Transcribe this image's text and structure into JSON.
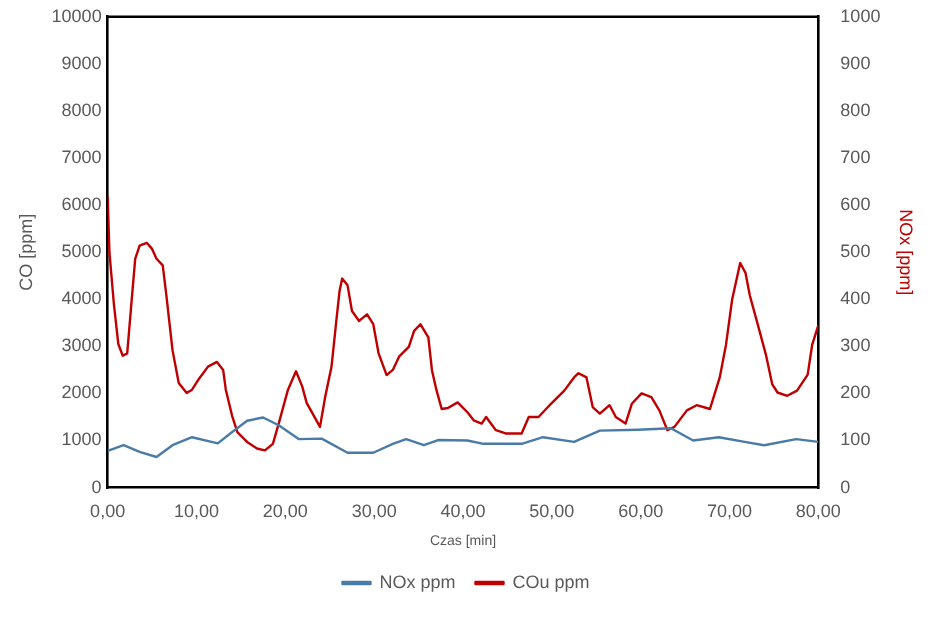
{
  "chart_data": {
    "type": "line",
    "xlabel": "Czas [min]",
    "ylabel": "CO [ppm]",
    "y2label": "NOx [ppm]",
    "xlim": [
      0,
      80
    ],
    "xticks": [
      {
        "value": 0,
        "label": "0,00"
      },
      {
        "value": 10,
        "label": "10,00"
      },
      {
        "value": 20,
        "label": "20,00"
      },
      {
        "value": 30,
        "label": "30,00"
      },
      {
        "value": 40,
        "label": "40,00"
      },
      {
        "value": 50,
        "label": "50,00"
      },
      {
        "value": 60,
        "label": "60,00"
      },
      {
        "value": 70,
        "label": "70,00"
      },
      {
        "value": 80,
        "label": "80,00"
      }
    ],
    "ylim": [
      0,
      10000
    ],
    "yticks": [
      0,
      1000,
      2000,
      3000,
      4000,
      5000,
      6000,
      7000,
      8000,
      9000,
      10000
    ],
    "y2lim": [
      0,
      1000
    ],
    "y2ticks": [
      0,
      100,
      200,
      300,
      400,
      500,
      600,
      700,
      800,
      900,
      1000
    ],
    "grid": false,
    "legend": "bottom",
    "marker": "none",
    "line_style": "solid",
    "series": [
      {
        "name": "NOx ppm",
        "color": "#4a7ba7",
        "axis": "y2",
        "x": [
          0,
          1.8,
          3.6,
          5.5,
          7.3,
          9.5,
          12.4,
          13.8,
          15.7,
          17.5,
          19.3,
          21.5,
          24.1,
          27,
          29.9,
          32.1,
          33.6,
          35.6,
          37.2,
          40.5,
          42.3,
          46.6,
          49,
          52.5,
          55.4,
          59.7,
          63.4,
          65.9,
          68.8,
          71.7,
          73.9,
          77.5,
          80
        ],
        "values": [
          78,
          90,
          76,
          65,
          90,
          107,
          94,
          115,
          142,
          149,
          132,
          103,
          104,
          74,
          74,
          93,
          103,
          90,
          101,
          100,
          93,
          93,
          107,
          97,
          121,
          123,
          126,
          100,
          107,
          97,
          90,
          103,
          97
        ]
      },
      {
        "name": "COu ppm",
        "color": "#c00000",
        "x": [
          0,
          0.2,
          0.7,
          1.2,
          1.7,
          2.2,
          2.6,
          3.1,
          3.6,
          4.4,
          5,
          5.5,
          6.2,
          6.6,
          7.3,
          8,
          8.9,
          9.5,
          10.2,
          11.3,
          12.3,
          13,
          13.3,
          14,
          14.6,
          15.7,
          16.8,
          17.7,
          18.6,
          19.3,
          20.3,
          21.2,
          21.9,
          22.4,
          23.2,
          23.9,
          24.5,
          25.2,
          25.7,
          26.1,
          26.4,
          27,
          27.5,
          28.3,
          29.2,
          29.9,
          30.5,
          31.4,
          32.1,
          32.8,
          33.9,
          34.5,
          35.2,
          36.1,
          36.5,
          37,
          37.6,
          38.3,
          39.4,
          40.5,
          41.2,
          42.1,
          42.6,
          43.7,
          44.8,
          46.6,
          47.4,
          48.5,
          49.9,
          51.4,
          52.5,
          53,
          53.9,
          54.6,
          55.4,
          56.5,
          57.2,
          58.3,
          59,
          60.1,
          61.2,
          62.1,
          63,
          63.8,
          65.2,
          66.3,
          67.8,
          68.9,
          69.6,
          70.3,
          71.2,
          71.8,
          72.3,
          73.2,
          74.1,
          74.8,
          75.4,
          76.5,
          77.6,
          78.8,
          79.3,
          80
        ],
        "values": [
          6180,
          5000,
          3900,
          3050,
          2800,
          2850,
          3750,
          4860,
          5140,
          5200,
          5070,
          4860,
          4720,
          4100,
          2920,
          2220,
          2010,
          2080,
          2290,
          2570,
          2670,
          2500,
          2080,
          1530,
          1180,
          970,
          830,
          790,
          930,
          1390,
          2080,
          2470,
          2150,
          1800,
          1530,
          1290,
          1940,
          2570,
          3470,
          4170,
          4440,
          4300,
          3750,
          3540,
          3680,
          3470,
          2850,
          2390,
          2500,
          2780,
          2990,
          3330,
          3470,
          3190,
          2500,
          2080,
          1670,
          1690,
          1810,
          1600,
          1430,
          1360,
          1500,
          1220,
          1150,
          1150,
          1500,
          1500,
          1780,
          2060,
          2340,
          2430,
          2340,
          1710,
          1570,
          1750,
          1500,
          1360,
          1780,
          2000,
          1920,
          1640,
          1220,
          1290,
          1640,
          1750,
          1670,
          2340,
          3030,
          4000,
          4770,
          4560,
          4070,
          3450,
          2820,
          2200,
          2020,
          1950,
          2060,
          2400,
          3030,
          3450
        ]
      }
    ]
  }
}
